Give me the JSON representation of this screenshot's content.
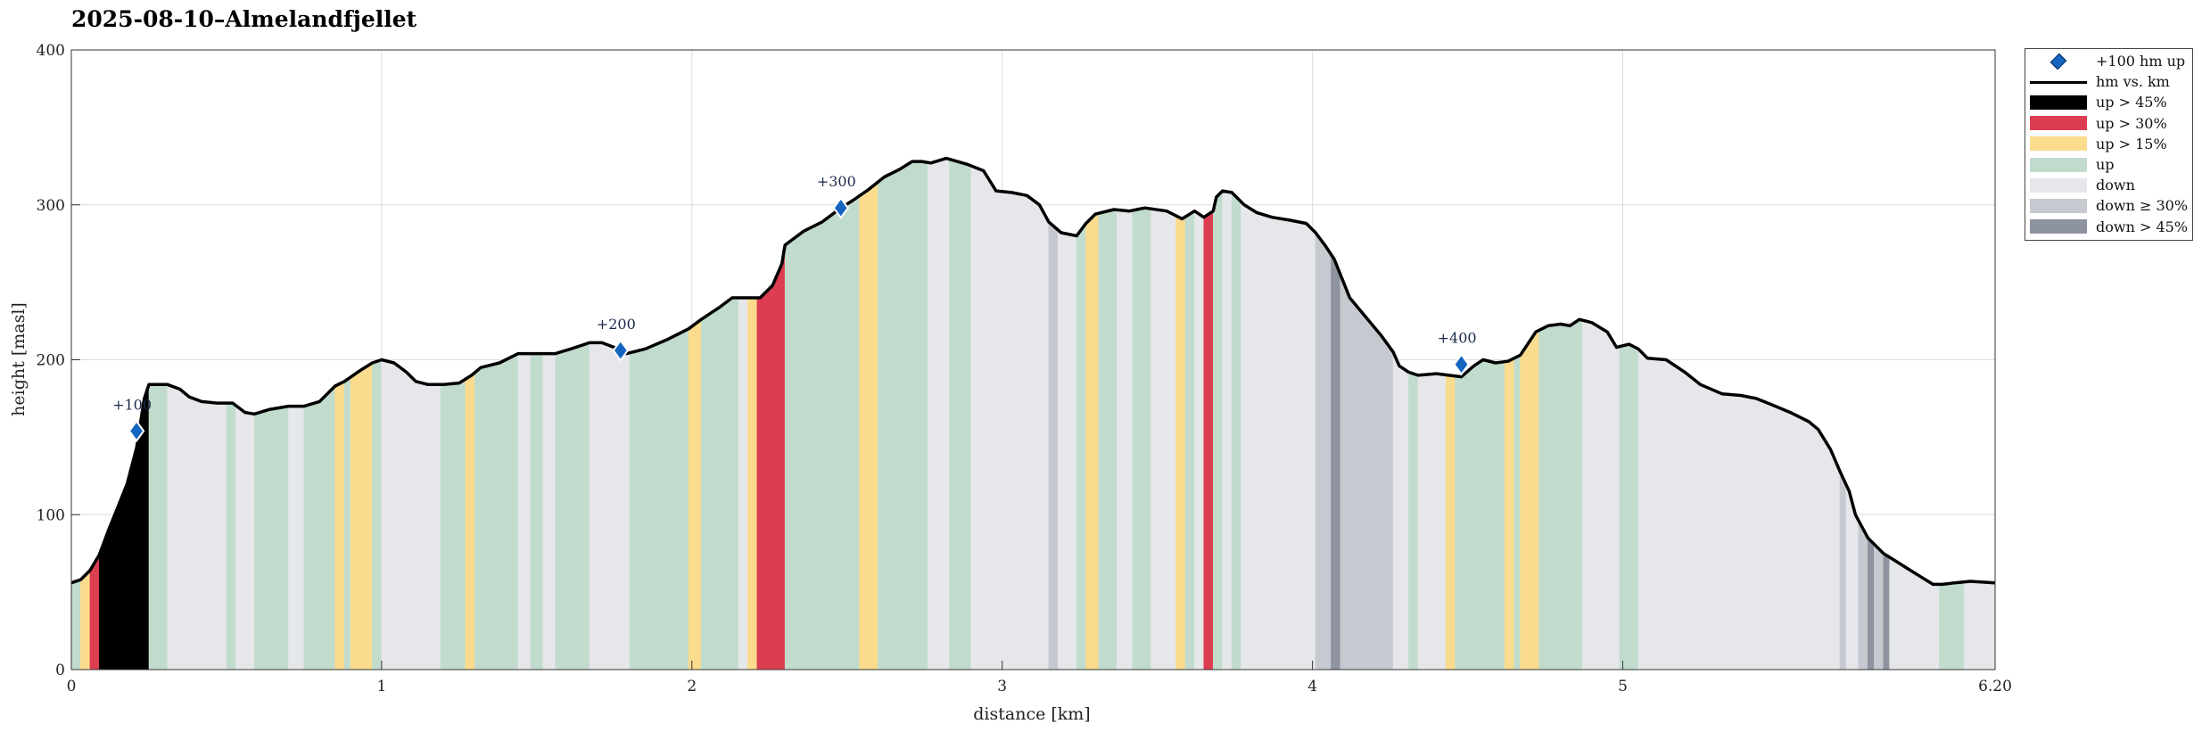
{
  "chart_data": {
    "type": "area",
    "title": "2025-08-10–Almelandfjellet",
    "xlabel": "distance [km]",
    "ylabel": "height [masl]",
    "xlim": [
      0,
      6.2
    ],
    "ylim": [
      0,
      400
    ],
    "x_ticks": [
      "0",
      "1",
      "2",
      "3",
      "4",
      "5",
      "6.20"
    ],
    "x_tick_values": [
      0,
      1,
      2,
      3,
      4,
      5,
      6.2
    ],
    "y_ticks": [
      "0",
      "100",
      "200",
      "300",
      "400"
    ],
    "y_tick_values": [
      0,
      100,
      200,
      300,
      400
    ],
    "grid": true,
    "legend_position": "outside-top-right",
    "profile": {
      "x": [
        0,
        0.03,
        0.06,
        0.09,
        0.12,
        0.15,
        0.18,
        0.21,
        0.235,
        0.25,
        0.31,
        0.35,
        0.38,
        0.42,
        0.47,
        0.52,
        0.56,
        0.59,
        0.64,
        0.7,
        0.75,
        0.8,
        0.85,
        0.88,
        0.93,
        0.97,
        1.0,
        1.04,
        1.08,
        1.11,
        1.15,
        1.2,
        1.25,
        1.29,
        1.32,
        1.38,
        1.44,
        1.5,
        1.56,
        1.61,
        1.67,
        1.71,
        1.75,
        1.79,
        1.85,
        1.92,
        1.99,
        2.03,
        2.09,
        2.13,
        2.18,
        2.22,
        2.26,
        2.29,
        2.3,
        2.36,
        2.42,
        2.48,
        2.52,
        2.57,
        2.62,
        2.67,
        2.71,
        2.74,
        2.77,
        2.82,
        2.89,
        2.94,
        2.98,
        3.03,
        3.08,
        3.12,
        3.15,
        3.19,
        3.24,
        3.27,
        3.3,
        3.36,
        3.41,
        3.46,
        3.53,
        3.58,
        3.62,
        3.65,
        3.68,
        3.69,
        3.71,
        3.74,
        3.78,
        3.82,
        3.87,
        3.93,
        3.98,
        4.01,
        4.04,
        4.07,
        4.12,
        4.17,
        4.22,
        4.26,
        4.28,
        4.31,
        4.34,
        4.4,
        4.44,
        4.48,
        4.52,
        4.55,
        4.59,
        4.63,
        4.67,
        4.72,
        4.76,
        4.8,
        4.83,
        4.86,
        4.9,
        4.95,
        4.98,
        5.02,
        5.05,
        5.08,
        5.14,
        5.2,
        5.25,
        5.32,
        5.38,
        5.43,
        5.48,
        5.54,
        5.6,
        5.63,
        5.67,
        5.7,
        5.73,
        5.75,
        5.79,
        5.84,
        5.88,
        5.92,
        5.96,
        6.0,
        6.03,
        6.07,
        6.12,
        6.2
      ],
      "y": [
        56,
        58,
        64,
        74,
        90,
        105,
        120,
        143,
        175,
        184,
        184,
        181,
        176,
        173,
        172,
        172,
        166,
        165,
        168,
        170,
        170,
        173,
        183,
        186,
        193,
        198,
        200,
        198,
        192,
        186,
        184,
        184,
        185,
        190,
        195,
        198,
        204,
        204,
        204,
        207,
        211,
        211,
        208,
        204,
        207,
        213,
        220,
        226,
        234,
        240,
        240,
        240,
        248,
        262,
        274,
        283,
        289,
        298,
        303,
        310,
        318,
        323,
        328,
        328,
        327,
        330,
        326,
        322,
        309,
        308,
        306,
        300,
        289,
        282,
        280,
        288,
        294,
        297,
        296,
        298,
        296,
        291,
        296,
        292,
        296,
        305,
        309,
        308,
        300,
        295,
        292,
        290,
        288,
        282,
        274,
        265,
        240,
        228,
        216,
        205,
        196,
        192,
        190,
        191,
        190,
        189,
        196,
        200,
        198,
        199,
        203,
        218,
        222,
        223,
        222,
        226,
        224,
        218,
        208,
        210,
        207,
        201,
        200,
        192,
        184,
        178,
        177,
        175,
        171,
        166,
        160,
        155,
        142,
        128,
        115,
        100,
        85,
        75,
        70,
        65,
        60,
        55,
        55,
        56,
        57,
        56
      ]
    },
    "segments": [
      {
        "x0": 0,
        "x1": 0.03,
        "class": "up"
      },
      {
        "x0": 0.03,
        "x1": 0.06,
        "class": "up > 15%"
      },
      {
        "x0": 0.06,
        "x1": 0.09,
        "class": "up > 30%"
      },
      {
        "x0": 0.09,
        "x1": 0.25,
        "class": "up > 45%"
      },
      {
        "x0": 0.25,
        "x1": 0.31,
        "class": "up"
      },
      {
        "x0": 0.31,
        "x1": 0.5,
        "class": "down"
      },
      {
        "x0": 0.5,
        "x1": 0.53,
        "class": "up"
      },
      {
        "x0": 0.53,
        "x1": 0.59,
        "class": "down"
      },
      {
        "x0": 0.59,
        "x1": 0.7,
        "class": "up"
      },
      {
        "x0": 0.7,
        "x1": 0.75,
        "class": "down"
      },
      {
        "x0": 0.75,
        "x1": 0.85,
        "class": "up"
      },
      {
        "x0": 0.85,
        "x1": 0.88,
        "class": "up > 15%"
      },
      {
        "x0": 0.88,
        "x1": 0.9,
        "class": "up"
      },
      {
        "x0": 0.9,
        "x1": 0.97,
        "class": "up > 15%"
      },
      {
        "x0": 0.97,
        "x1": 1.0,
        "class": "up"
      },
      {
        "x0": 1.0,
        "x1": 1.19,
        "class": "down"
      },
      {
        "x0": 1.19,
        "x1": 1.27,
        "class": "up"
      },
      {
        "x0": 1.27,
        "x1": 1.3,
        "class": "up > 15%"
      },
      {
        "x0": 1.3,
        "x1": 1.44,
        "class": "up"
      },
      {
        "x0": 1.44,
        "x1": 1.48,
        "class": "down"
      },
      {
        "x0": 1.48,
        "x1": 1.52,
        "class": "up"
      },
      {
        "x0": 1.52,
        "x1": 1.56,
        "class": "down"
      },
      {
        "x0": 1.56,
        "x1": 1.67,
        "class": "up"
      },
      {
        "x0": 1.67,
        "x1": 1.8,
        "class": "down"
      },
      {
        "x0": 1.8,
        "x1": 1.99,
        "class": "up"
      },
      {
        "x0": 1.99,
        "x1": 2.03,
        "class": "up > 15%"
      },
      {
        "x0": 2.03,
        "x1": 2.15,
        "class": "up"
      },
      {
        "x0": 2.15,
        "x1": 2.18,
        "class": "down"
      },
      {
        "x0": 2.18,
        "x1": 2.21,
        "class": "up > 15%"
      },
      {
        "x0": 2.21,
        "x1": 2.3,
        "class": "up > 30%"
      },
      {
        "x0": 2.3,
        "x1": 2.54,
        "class": "up"
      },
      {
        "x0": 2.54,
        "x1": 2.6,
        "class": "up > 15%"
      },
      {
        "x0": 2.6,
        "x1": 2.76,
        "class": "up"
      },
      {
        "x0": 2.76,
        "x1": 2.83,
        "class": "down"
      },
      {
        "x0": 2.83,
        "x1": 2.9,
        "class": "up"
      },
      {
        "x0": 2.9,
        "x1": 3.15,
        "class": "down"
      },
      {
        "x0": 3.15,
        "x1": 3.18,
        "class": "down ≥ 30%"
      },
      {
        "x0": 3.18,
        "x1": 3.24,
        "class": "down"
      },
      {
        "x0": 3.24,
        "x1": 3.27,
        "class": "up"
      },
      {
        "x0": 3.27,
        "x1": 3.31,
        "class": "up > 15%"
      },
      {
        "x0": 3.31,
        "x1": 3.37,
        "class": "up"
      },
      {
        "x0": 3.37,
        "x1": 3.42,
        "class": "down"
      },
      {
        "x0": 3.42,
        "x1": 3.48,
        "class": "up"
      },
      {
        "x0": 3.48,
        "x1": 3.56,
        "class": "down"
      },
      {
        "x0": 3.56,
        "x1": 3.59,
        "class": "up > 15%"
      },
      {
        "x0": 3.59,
        "x1": 3.62,
        "class": "up"
      },
      {
        "x0": 3.62,
        "x1": 3.65,
        "class": "down"
      },
      {
        "x0": 3.65,
        "x1": 3.68,
        "class": "up > 30%"
      },
      {
        "x0": 3.68,
        "x1": 3.71,
        "class": "up"
      },
      {
        "x0": 3.71,
        "x1": 3.74,
        "class": "down"
      },
      {
        "x0": 3.74,
        "x1": 3.77,
        "class": "up"
      },
      {
        "x0": 3.77,
        "x1": 4.01,
        "class": "down"
      },
      {
        "x0": 4.01,
        "x1": 4.06,
        "class": "down ≥ 30%"
      },
      {
        "x0": 4.06,
        "x1": 4.09,
        "class": "down > 45%"
      },
      {
        "x0": 4.09,
        "x1": 4.2,
        "class": "down ≥ 30%"
      },
      {
        "x0": 4.2,
        "x1": 4.2,
        "class": "down"
      },
      {
        "x0": 4.2,
        "x1": 4.26,
        "class": "down ≥ 30%"
      },
      {
        "x0": 4.26,
        "x1": 4.31,
        "class": "down"
      },
      {
        "x0": 4.31,
        "x1": 4.34,
        "class": "up"
      },
      {
        "x0": 4.34,
        "x1": 4.43,
        "class": "down"
      },
      {
        "x0": 4.43,
        "x1": 4.46,
        "class": "up > 15%"
      },
      {
        "x0": 4.46,
        "x1": 4.62,
        "class": "up"
      },
      {
        "x0": 4.62,
        "x1": 4.65,
        "class": "up > 15%"
      },
      {
        "x0": 4.65,
        "x1": 4.67,
        "class": "up"
      },
      {
        "x0": 4.67,
        "x1": 4.73,
        "class": "up > 15%"
      },
      {
        "x0": 4.73,
        "x1": 4.87,
        "class": "up"
      },
      {
        "x0": 4.87,
        "x1": 4.99,
        "class": "down"
      },
      {
        "x0": 4.99,
        "x1": 5.05,
        "class": "up"
      },
      {
        "x0": 5.05,
        "x1": 5.7,
        "class": "down"
      },
      {
        "x0": 5.7,
        "x1": 5.72,
        "class": "down ≥ 30%"
      },
      {
        "x0": 5.72,
        "x1": 5.76,
        "class": "down"
      },
      {
        "x0": 5.76,
        "x1": 5.79,
        "class": "down ≥ 30%"
      },
      {
        "x0": 5.79,
        "x1": 5.81,
        "class": "down > 45%"
      },
      {
        "x0": 5.81,
        "x1": 5.84,
        "class": "down ≥ 30%"
      },
      {
        "x0": 5.84,
        "x1": 5.86,
        "class": "down > 45%"
      },
      {
        "x0": 5.86,
        "x1": 6.02,
        "class": "down"
      },
      {
        "x0": 6.02,
        "x1": 6.1,
        "class": "up"
      },
      {
        "x0": 6.1,
        "x1": 6.2,
        "class": "down"
      }
    ],
    "milestones": [
      {
        "label": "+100",
        "x": 0.21,
        "y": 154
      },
      {
        "label": "+200",
        "x": 1.77,
        "y": 206
      },
      {
        "label": "+300",
        "x": 2.48,
        "y": 298
      },
      {
        "label": "+400",
        "x": 4.48,
        "y": 197
      }
    ],
    "legend": [
      {
        "label": "+100 hm up",
        "key": "diamond"
      },
      {
        "label": "hm vs. km",
        "key": "line"
      },
      {
        "label": "up > 45%",
        "key": "patch",
        "color": "#000000"
      },
      {
        "label": "up > 30%",
        "key": "patch",
        "color": "#dc3d50"
      },
      {
        "label": "up > 15%",
        "key": "patch",
        "color": "#fbdb8d"
      },
      {
        "label": "up",
        "key": "patch",
        "color": "#c1dccd"
      },
      {
        "label": "down",
        "key": "patch",
        "color": "#e6e7ea"
      },
      {
        "label": "down ≥ 30%",
        "key": "patch",
        "color": "#c7c9d1"
      },
      {
        "label": "down > 45%",
        "key": "patch",
        "color": "#8d939f"
      }
    ],
    "colors": {
      "up > 45%": "#000000",
      "up > 30%": "#dc3d50",
      "up > 15%": "#fbdb8d",
      "up": "#c1dccd",
      "down": "#e6e7ea",
      "down ≥ 30%": "#c7c9d1",
      "down > 45%": "#8d939f",
      "line": "#000000",
      "marker": "#1565c0",
      "marker_edge": "#0d2f6e"
    }
  }
}
